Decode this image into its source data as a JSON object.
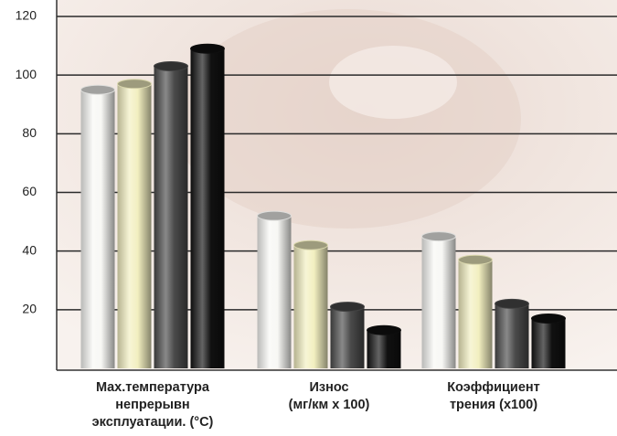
{
  "chart_data": {
    "type": "bar",
    "categories": [
      [
        "Max.температура",
        "непрерывн",
        "эксплуатации. (°C)"
      ],
      [
        "Износ",
        "(мг/км х 100)"
      ],
      [
        "Коэффициент",
        "трения (х100)"
      ]
    ],
    "series": [
      {
        "color": "#f7f7f4",
        "values": [
          95,
          52,
          45
        ]
      },
      {
        "color": "#f2efc0",
        "values": [
          97,
          42,
          37
        ]
      },
      {
        "color": "#4a4a4a",
        "values": [
          103,
          21,
          22
        ]
      },
      {
        "color": "#111111",
        "values": [
          109,
          13,
          17
        ]
      }
    ],
    "ylim": [
      0,
      120
    ],
    "yticks": [
      20,
      40,
      60,
      80,
      100,
      120
    ],
    "grid": true
  }
}
